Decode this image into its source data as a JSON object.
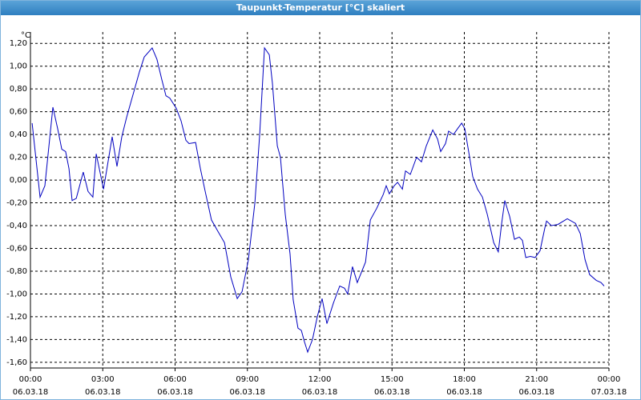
{
  "window_title": "Taupunkt-Temperatur [°C] skaliert",
  "chart_data": {
    "type": "line",
    "y_unit": "°C",
    "color": "#0000c0",
    "grid": true,
    "x": [
      0.07,
      0.4,
      0.6,
      0.93,
      1.13,
      1.3,
      1.46,
      1.6,
      1.73,
      1.9,
      2.19,
      2.39,
      2.59,
      2.73,
      3.03,
      3.39,
      3.59,
      3.79,
      3.99,
      4.32,
      4.52,
      4.72,
      5.05,
      5.25,
      5.45,
      5.62,
      5.78,
      6.05,
      6.25,
      6.45,
      6.58,
      6.85,
      7.05,
      7.25,
      7.51,
      7.78,
      8.05,
      8.31,
      8.58,
      8.78,
      9.04,
      9.31,
      9.51,
      9.71,
      9.91,
      10.04,
      10.24,
      10.37,
      10.57,
      10.77,
      10.9,
      11.1,
      11.24,
      11.37,
      11.5,
      11.7,
      11.9,
      12.1,
      12.3,
      12.57,
      12.83,
      13.03,
      13.16,
      13.36,
      13.56,
      13.9,
      14.1,
      14.36,
      14.63,
      14.76,
      14.89,
      15.09,
      15.23,
      15.43,
      15.56,
      15.76,
      16.02,
      16.22,
      16.42,
      16.69,
      16.89,
      17.02,
      17.22,
      17.35,
      17.55,
      17.75,
      17.89,
      18.02,
      18.22,
      18.35,
      18.55,
      18.75,
      18.95,
      19.22,
      19.41,
      19.55,
      19.68,
      19.88,
      20.08,
      20.28,
      20.41,
      20.55,
      20.74,
      20.94,
      21.14,
      21.34,
      21.41,
      21.61,
      21.88,
      22.27,
      22.61,
      22.81,
      23.01,
      23.2,
      23.47,
      23.67,
      23.8
    ],
    "values": [
      0.5,
      -0.15,
      -0.05,
      0.64,
      0.45,
      0.27,
      0.25,
      0.1,
      -0.18,
      -0.16,
      0.07,
      -0.1,
      -0.15,
      0.23,
      -0.08,
      0.38,
      0.12,
      0.38,
      0.55,
      0.8,
      0.95,
      1.08,
      1.16,
      1.06,
      0.88,
      0.74,
      0.72,
      0.63,
      0.52,
      0.35,
      0.32,
      0.33,
      0.1,
      -0.1,
      -0.35,
      -0.45,
      -0.55,
      -0.85,
      -1.04,
      -0.98,
      -0.7,
      -0.2,
      0.4,
      1.16,
      1.1,
      0.85,
      0.3,
      0.2,
      -0.3,
      -0.65,
      -1.05,
      -1.3,
      -1.32,
      -1.42,
      -1.51,
      -1.4,
      -1.2,
      -1.04,
      -1.26,
      -1.08,
      -0.93,
      -0.95,
      -1.0,
      -0.76,
      -0.9,
      -0.72,
      -0.35,
      -0.25,
      -0.13,
      -0.05,
      -0.12,
      -0.05,
      -0.02,
      -0.08,
      0.08,
      0.05,
      0.2,
      0.16,
      0.3,
      0.44,
      0.36,
      0.25,
      0.32,
      0.43,
      0.4,
      0.46,
      0.5,
      0.45,
      0.2,
      0.03,
      -0.08,
      -0.15,
      -0.3,
      -0.55,
      -0.63,
      -0.38,
      -0.18,
      -0.32,
      -0.52,
      -0.5,
      -0.53,
      -0.68,
      -0.67,
      -0.68,
      -0.62,
      -0.42,
      -0.36,
      -0.4,
      -0.39,
      -0.34,
      -0.38,
      -0.47,
      -0.7,
      -0.83,
      -0.88,
      -0.9,
      -0.93
    ],
    "xlim": [
      0,
      24
    ],
    "xticks": [
      {
        "value": 0,
        "label": "00:00"
      },
      {
        "value": 3,
        "label": "03:00"
      },
      {
        "value": 6,
        "label": "06:00"
      },
      {
        "value": 9,
        "label": "09:00"
      },
      {
        "value": 12,
        "label": "12:00"
      },
      {
        "value": 15,
        "label": "15:00"
      },
      {
        "value": 18,
        "label": "18:00"
      },
      {
        "value": 21,
        "label": "21:00"
      },
      {
        "value": 24,
        "label": "00:00"
      }
    ],
    "xtick_dates": [
      "06.03.18",
      "06.03.18",
      "06.03.18",
      "06.03.18",
      "06.03.18",
      "06.03.18",
      "06.03.18",
      "06.03.18",
      "07.03.18"
    ],
    "ylim": [
      -1.65,
      1.3
    ],
    "yticks": [
      {
        "value": 1.2,
        "label": "1,20"
      },
      {
        "value": 1.0,
        "label": "1,00"
      },
      {
        "value": 0.8,
        "label": "0,80"
      },
      {
        "value": 0.6,
        "label": "0,60"
      },
      {
        "value": 0.4,
        "label": "0,40"
      },
      {
        "value": 0.2,
        "label": "0,20"
      },
      {
        "value": 0,
        "label": "0,00"
      },
      {
        "value": -0.2,
        "label": "-0,20"
      },
      {
        "value": -0.4,
        "label": "-0,40"
      },
      {
        "value": -0.6,
        "label": "-0,60"
      },
      {
        "value": -0.8,
        "label": "-0,80"
      },
      {
        "value": -1.0,
        "label": "-1,00"
      },
      {
        "value": -1.2,
        "label": "-1,20"
      },
      {
        "value": -1.4,
        "label": "-1,40"
      },
      {
        "value": -1.6,
        "label": "-1,60"
      }
    ]
  }
}
